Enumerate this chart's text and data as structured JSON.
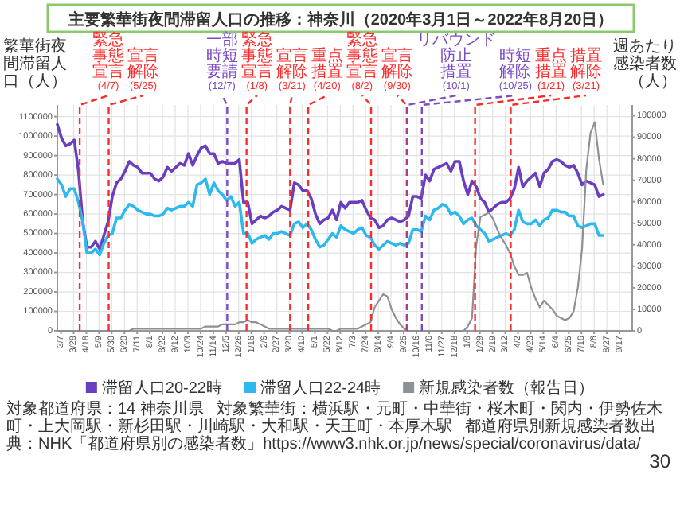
{
  "chart_data": {
    "type": "line",
    "title": "主要繁華街夜間滞留人口の推移：神奈川（2020年3月1日～2022年8月20日）",
    "ylabel": "繁華街夜間滞留人口（人）",
    "y2label": "週あたり感染者数（人）",
    "x": [
      "2020-03-01",
      "2020-03-08",
      "2020-03-15",
      "2020-03-22",
      "2020-03-29",
      "2020-04-05",
      "2020-04-12",
      "2020-04-19",
      "2020-04-26",
      "2020-05-03",
      "2020-05-10",
      "2020-05-17",
      "2020-05-24",
      "2020-05-31",
      "2020-06-07",
      "2020-06-14",
      "2020-06-21",
      "2020-06-28",
      "2020-07-05",
      "2020-07-12",
      "2020-07-19",
      "2020-07-26",
      "2020-08-02",
      "2020-08-09",
      "2020-08-16",
      "2020-08-23",
      "2020-08-30",
      "2020-09-06",
      "2020-09-13",
      "2020-09-20",
      "2020-09-27",
      "2020-10-04",
      "2020-10-11",
      "2020-10-18",
      "2020-10-25",
      "2020-11-01",
      "2020-11-08",
      "2020-11-15",
      "2020-11-22",
      "2020-11-29",
      "2020-12-06",
      "2020-12-13",
      "2020-12-20",
      "2020-12-27",
      "2021-01-03",
      "2021-01-10",
      "2021-01-17",
      "2021-01-24",
      "2021-01-31",
      "2021-02-07",
      "2021-02-14",
      "2021-02-21",
      "2021-02-28",
      "2021-03-07",
      "2021-03-14",
      "2021-03-21",
      "2021-03-28",
      "2021-04-04",
      "2021-04-11",
      "2021-04-18",
      "2021-04-25",
      "2021-05-02",
      "2021-05-09",
      "2021-05-16",
      "2021-05-23",
      "2021-05-30",
      "2021-06-06",
      "2021-06-13",
      "2021-06-20",
      "2021-06-27",
      "2021-07-04",
      "2021-07-11",
      "2021-07-18",
      "2021-07-25",
      "2021-08-01",
      "2021-08-08",
      "2021-08-15",
      "2021-08-22",
      "2021-08-29",
      "2021-09-05",
      "2021-09-12",
      "2021-09-19",
      "2021-09-26",
      "2021-10-03",
      "2021-10-10",
      "2021-10-17",
      "2021-10-24",
      "2021-10-31",
      "2021-11-07",
      "2021-11-14",
      "2021-11-21",
      "2021-11-28",
      "2021-12-05",
      "2021-12-12",
      "2021-12-19",
      "2021-12-26",
      "2022-01-02",
      "2022-01-09",
      "2022-01-16",
      "2022-01-23",
      "2022-01-30",
      "2022-02-06",
      "2022-02-13",
      "2022-02-20",
      "2022-02-27",
      "2022-03-06",
      "2022-03-13",
      "2022-03-20",
      "2022-03-27",
      "2022-04-03",
      "2022-04-10",
      "2022-04-17",
      "2022-04-24",
      "2022-05-01",
      "2022-05-08",
      "2022-05-15",
      "2022-05-22",
      "2022-05-29",
      "2022-06-05",
      "2022-06-12",
      "2022-06-19",
      "2022-06-26",
      "2022-07-03",
      "2022-07-10",
      "2022-07-17",
      "2022-07-24",
      "2022-07-31",
      "2022-08-07",
      "2022-08-14",
      "2022-08-21"
    ],
    "series": [
      {
        "name": "滞留人口20-22時",
        "color": "#6a3fbf",
        "values": [
          1060000,
          990000,
          950000,
          960000,
          980000,
          820000,
          560000,
          430000,
          430000,
          460000,
          420000,
          490000,
          560000,
          690000,
          760000,
          780000,
          820000,
          870000,
          850000,
          840000,
          810000,
          810000,
          810000,
          780000,
          770000,
          790000,
          840000,
          820000,
          840000,
          860000,
          850000,
          910000,
          850000,
          900000,
          940000,
          950000,
          910000,
          910000,
          860000,
          870000,
          860000,
          860000,
          860000,
          880000,
          660000,
          660000,
          550000,
          570000,
          590000,
          580000,
          590000,
          610000,
          620000,
          640000,
          630000,
          620000,
          760000,
          750000,
          720000,
          720000,
          680000,
          600000,
          550000,
          570000,
          580000,
          620000,
          570000,
          660000,
          630000,
          660000,
          660000,
          660000,
          670000,
          620000,
          580000,
          570000,
          530000,
          540000,
          570000,
          580000,
          570000,
          560000,
          570000,
          590000,
          690000,
          690000,
          680000,
          800000,
          770000,
          830000,
          840000,
          850000,
          860000,
          820000,
          870000,
          870000,
          770000,
          700000,
          770000,
          740000,
          680000,
          660000,
          610000,
          630000,
          650000,
          660000,
          660000,
          680000,
          730000,
          840000,
          740000,
          770000,
          790000,
          810000,
          740000,
          810000,
          830000,
          870000,
          880000,
          870000,
          850000,
          840000,
          850000,
          810000,
          750000,
          770000,
          760000,
          750000,
          690000,
          700000
        ]
      },
      {
        "name": "滞留人口22-24時",
        "color": "#2cb9ee",
        "values": [
          780000,
          750000,
          690000,
          730000,
          730000,
          660000,
          560000,
          400000,
          400000,
          420000,
          390000,
          450000,
          490000,
          500000,
          580000,
          580000,
          620000,
          650000,
          640000,
          620000,
          610000,
          600000,
          600000,
          590000,
          590000,
          600000,
          630000,
          620000,
          630000,
          640000,
          640000,
          660000,
          640000,
          750000,
          760000,
          780000,
          700000,
          760000,
          720000,
          700000,
          670000,
          690000,
          640000,
          660000,
          500000,
          500000,
          450000,
          470000,
          480000,
          490000,
          470000,
          500000,
          500000,
          510000,
          500000,
          490000,
          550000,
          560000,
          530000,
          550000,
          520000,
          470000,
          430000,
          440000,
          470000,
          500000,
          480000,
          540000,
          520000,
          510000,
          500000,
          520000,
          530000,
          490000,
          480000,
          440000,
          420000,
          440000,
          460000,
          450000,
          440000,
          450000,
          440000,
          450000,
          520000,
          520000,
          510000,
          590000,
          570000,
          620000,
          630000,
          650000,
          640000,
          600000,
          610000,
          590000,
          550000,
          570000,
          580000,
          540000,
          520000,
          500000,
          460000,
          470000,
          480000,
          490000,
          500000,
          490000,
          520000,
          620000,
          560000,
          550000,
          550000,
          570000,
          540000,
          570000,
          580000,
          620000,
          620000,
          610000,
          610000,
          590000,
          590000,
          540000,
          530000,
          540000,
          550000,
          550000,
          490000,
          490000
        ]
      },
      {
        "name": "新規感染者数（報告日）",
        "axis": "y2",
        "color": "#8c9198",
        "values": [
          0,
          0,
          0,
          0,
          0,
          0,
          0,
          0,
          0,
          0,
          0,
          0,
          0,
          0,
          0,
          0,
          0,
          0,
          1000,
          1000,
          1000,
          1000,
          1000,
          1000,
          1000,
          1000,
          1000,
          1000,
          1000,
          1000,
          1000,
          1000,
          1000,
          1000,
          1000,
          2000,
          2000,
          2000,
          2000,
          3000,
          3000,
          3000,
          3000,
          4000,
          4000,
          5000,
          4000,
          4000,
          3000,
          2000,
          1000,
          1000,
          1000,
          1000,
          1000,
          1000,
          1000,
          1000,
          1000,
          1000,
          1000,
          1000,
          1000,
          1000,
          1000,
          0,
          0,
          1000,
          1000,
          1000,
          1000,
          1000,
          2000,
          3000,
          4000,
          11000,
          14000,
          17000,
          16000,
          10000,
          6000,
          3000,
          1000,
          0,
          0,
          0,
          0,
          0,
          0,
          0,
          0,
          0,
          0,
          0,
          0,
          0,
          0,
          2000,
          6000,
          40000,
          53000,
          54000,
          55000,
          52000,
          47000,
          43000,
          40000,
          36000,
          30000,
          26000,
          26000,
          27000,
          20000,
          15000,
          11000,
          14000,
          12000,
          10000,
          7000,
          6000,
          5000,
          6000,
          9000,
          20000,
          38000,
          75000,
          92000,
          97000,
          80000,
          68000
        ]
      }
    ],
    "xlim": [
      "2020-03-01",
      "2022-10-08"
    ],
    "xticks": [
      {
        "value": "2020-03-07",
        "label": "3/7"
      },
      {
        "value": "2020-03-28",
        "label": "3/28"
      },
      {
        "value": "2020-04-18",
        "label": "4/18"
      },
      {
        "value": "2020-05-09",
        "label": "5/9"
      },
      {
        "value": "2020-05-30",
        "label": "5/30"
      },
      {
        "value": "2020-06-20",
        "label": "6/20"
      },
      {
        "value": "2020-07-11",
        "label": "7/11"
      },
      {
        "value": "2020-08-01",
        "label": "8/1"
      },
      {
        "value": "2020-08-22",
        "label": "8/22"
      },
      {
        "value": "2020-09-12",
        "label": "9/12"
      },
      {
        "value": "2020-10-03",
        "label": "10/3"
      },
      {
        "value": "2020-10-24",
        "label": "10/24"
      },
      {
        "value": "2020-11-14",
        "label": "11/14"
      },
      {
        "value": "2020-12-05",
        "label": "12/5"
      },
      {
        "value": "2020-12-26",
        "label": "12/26"
      },
      {
        "value": "2021-01-16",
        "label": "1/16"
      },
      {
        "value": "2021-02-06",
        "label": "2/6"
      },
      {
        "value": "2021-02-27",
        "label": "2/27"
      },
      {
        "value": "2021-03-20",
        "label": "3/20"
      },
      {
        "value": "2021-04-10",
        "label": "4/10"
      },
      {
        "value": "2021-05-01",
        "label": "5/1"
      },
      {
        "value": "2021-05-22",
        "label": "5/22"
      },
      {
        "value": "2021-06-12",
        "label": "6/12"
      },
      {
        "value": "2021-07-03",
        "label": "7/3"
      },
      {
        "value": "2021-07-24",
        "label": "7/24"
      },
      {
        "value": "2021-08-14",
        "label": "8/14"
      },
      {
        "value": "2021-09-04",
        "label": "9/4"
      },
      {
        "value": "2021-09-25",
        "label": "9/25"
      },
      {
        "value": "2021-10-16",
        "label": "10/16"
      },
      {
        "value": "2021-11-06",
        "label": "11/6"
      },
      {
        "value": "2021-11-27",
        "label": "11/27"
      },
      {
        "value": "2021-12-18",
        "label": "12/18"
      },
      {
        "value": "2022-01-08",
        "label": "1/8"
      },
      {
        "value": "2022-01-29",
        "label": "1/29"
      },
      {
        "value": "2022-02-19",
        "label": "2/19"
      },
      {
        "value": "2022-03-12",
        "label": "3/12"
      },
      {
        "value": "2022-04-02",
        "label": "4/2"
      },
      {
        "value": "2022-04-23",
        "label": "4/23"
      },
      {
        "value": "2022-05-14",
        "label": "5/14"
      },
      {
        "value": "2022-06-04",
        "label": "6/4"
      },
      {
        "value": "2022-06-25",
        "label": "6/25"
      },
      {
        "value": "2022-07-16",
        "label": "7/16"
      },
      {
        "value": "2022-08-06",
        "label": "8/6"
      },
      {
        "value": "2022-08-27",
        "label": "8/27"
      },
      {
        "value": "2022-09-17",
        "label": "9/17"
      }
    ],
    "ylim": [
      0,
      1160000
    ],
    "yticks": [
      0,
      100000,
      200000,
      300000,
      400000,
      500000,
      600000,
      700000,
      800000,
      900000,
      1000000,
      1100000
    ],
    "y2lim": [
      0,
      105000
    ],
    "y2ticks": [
      0,
      10000,
      20000,
      30000,
      40000,
      50000,
      60000,
      70000,
      80000,
      90000,
      100000
    ],
    "ref_lines": [
      {
        "axis": "x",
        "value": "2020-04-07",
        "label": "緊急事態宣言(4/7)",
        "color": "#ff2b2b",
        "line_style": "dashed"
      },
      {
        "axis": "x",
        "value": "2020-05-25",
        "label": "宣言解除(5/25)",
        "color": "#ff2b2b",
        "line_style": "dashed"
      },
      {
        "axis": "x",
        "value": "2020-12-07",
        "label": "一部時短要請(12/7)",
        "color": "#7b4bc4",
        "line_style": "dashed"
      },
      {
        "axis": "x",
        "value": "2021-01-08",
        "label": "緊急事態宣言(1/8)",
        "color": "#ff2b2b",
        "line_style": "dashed"
      },
      {
        "axis": "x",
        "value": "2021-03-21",
        "label": "宣言解除(3/21)",
        "color": "#ff2b2b",
        "line_style": "dashed"
      },
      {
        "axis": "x",
        "value": "2021-04-20",
        "label": "重点措置(4/20)",
        "color": "#ff2b2b",
        "line_style": "dashed"
      },
      {
        "axis": "x",
        "value": "2021-08-02",
        "label": "緊急事態宣言(8/2)",
        "color": "#ff2b2b",
        "line_style": "dashed"
      },
      {
        "axis": "x",
        "value": "2021-09-30",
        "label": "宣言解除(9/30)",
        "color": "#ff2b2b",
        "line_style": "dashed"
      },
      {
        "axis": "x",
        "value": "2021-10-01",
        "label": "リバウンド防止措置(10/1)",
        "color": "#7b4bc4",
        "line_style": "dashed"
      },
      {
        "axis": "x",
        "value": "2021-10-25",
        "label": "時短解除(10/25)",
        "color": "#7b4bc4",
        "line_style": "dashed"
      },
      {
        "axis": "x",
        "value": "2022-01-21",
        "label": "重点措置(1/21)",
        "color": "#ff2b2b",
        "line_style": "dashed"
      },
      {
        "axis": "x",
        "value": "2022-03-21",
        "label": "措置解除(3/21)",
        "color": "#ff2b2b",
        "line_style": "dashed"
      }
    ],
    "grid": true,
    "legend": "bottom",
    "annotations": [
      "対象都道府県：14 神奈川県",
      "対象繁華街：横浜駅・元町・中華街・桜木町・関内・伊勢佐木町・上大岡駅・新杉田駅・川崎駅・大和駅・天王町・本厚木駅",
      "都道府県別新規感染者数出典：NHK「都道府県別の感染者数」https://www3.nhk.or.jp/news/special/coronavirus/data/",
      "30"
    ]
  }
}
